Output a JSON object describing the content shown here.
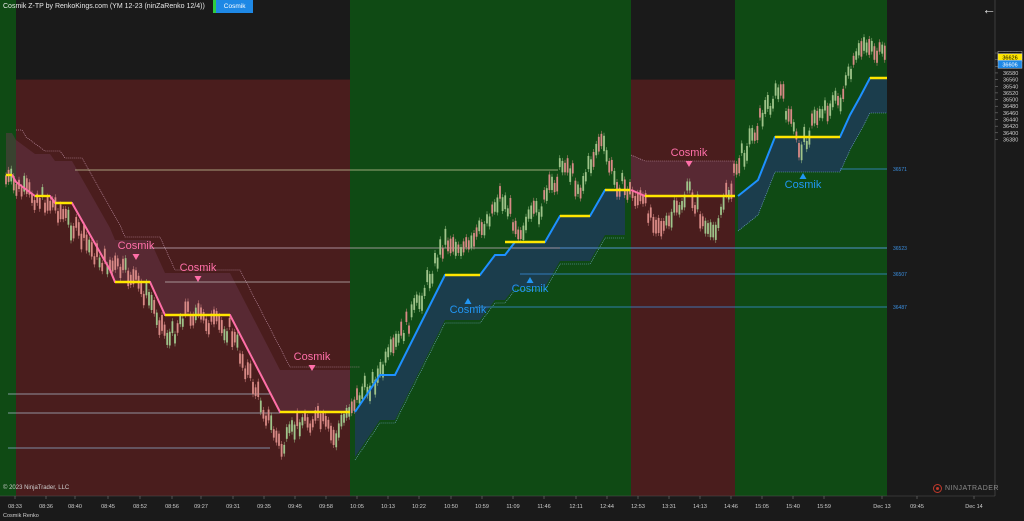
{
  "header": {
    "title": "Cosmik Z-TP by RenkoKings.com (YM 12-23 (ninZaRenko 12/4))",
    "indicator_button": "Cosmik"
  },
  "footer": {
    "copyright": "© 2023 NinjaTrader, LLC",
    "status": "Cosmik Renko",
    "brand": "NINJATRADER"
  },
  "icons": {
    "back": "arrow-left-icon",
    "brand_logo": "ninjatrader-logo-icon"
  },
  "colors": {
    "background": "#1a1a1a",
    "bull_zone": "#0f4a14",
    "bear_zone": "#4a1d1d",
    "up_candle": "#9fc48a",
    "down_candle": "#d98a86",
    "stop_up": "#1e90ff",
    "stop_down": "#ff6fa8",
    "level": "#ffe600",
    "signal_up": "#2196f3",
    "signal_down": "#ff6fa8"
  },
  "price_axis": {
    "ticks": [
      "36640",
      "36620",
      "36600",
      "36580",
      "36560",
      "36540",
      "36520",
      "36500",
      "36480",
      "36460",
      "36440",
      "36420",
      "36400",
      "36380"
    ],
    "current_price": "36633",
    "level_price": "36626",
    "stop_price": "36606"
  },
  "time_axis": {
    "ticks": [
      "08:33",
      "08:36",
      "08:40",
      "08:45",
      "08:52",
      "08:56",
      "09:27",
      "09:31",
      "09:35",
      "09:45",
      "09:58",
      "10:05",
      "10:13",
      "10:22",
      "10:50",
      "10:59",
      "11:09",
      "11:46",
      "12:11",
      "12:44",
      "12:53",
      "13:31",
      "14:13",
      "14:46",
      "15:05",
      "15:40",
      "15:59",
      "Dec 13",
      "09:45",
      "Dec 14"
    ]
  },
  "line_labels": [
    "36571",
    "36523",
    "36507",
    "36487"
  ],
  "signals": [
    {
      "label": "Cosmik",
      "direction": "down"
    },
    {
      "label": "Cosmik",
      "direction": "down"
    },
    {
      "label": "Cosmik",
      "direction": "down"
    },
    {
      "label": "Cosmik",
      "direction": "up"
    },
    {
      "label": "Cosmik",
      "direction": "up"
    },
    {
      "label": "Cosmik",
      "direction": "down"
    },
    {
      "label": "Cosmik",
      "direction": "up"
    }
  ]
}
